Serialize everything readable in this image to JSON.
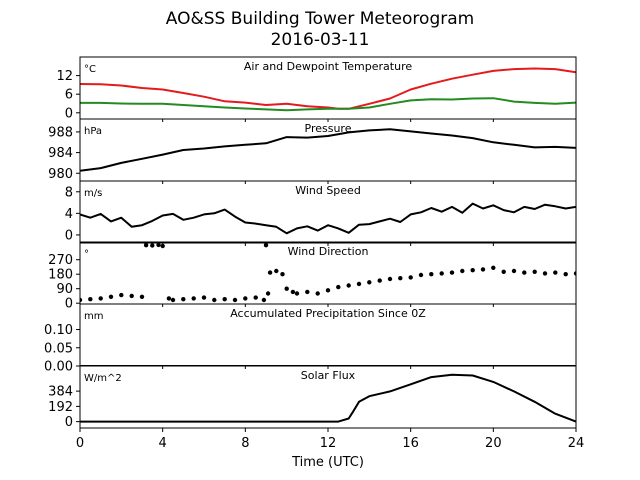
{
  "figure": {
    "title_line1": "AO&SS Building Tower Meteorogram",
    "title_line2": "2016-03-11",
    "xlabel": "Time (UTC)"
  },
  "chart_data": [
    {
      "type": "line",
      "title": "Air and Dewpoint Temperature",
      "unit_label": "°C",
      "xlim": [
        0,
        24
      ],
      "ylim": [
        -2,
        18
      ],
      "yticks": [
        "0",
        "6",
        "12"
      ],
      "colors": [
        "#e41a1c",
        "#228b22"
      ],
      "series": [
        {
          "x": [
            0,
            1,
            2,
            3,
            4,
            5,
            6,
            7,
            8,
            9,
            10,
            11,
            12,
            12.5,
            13,
            14,
            15,
            16,
            17,
            18,
            19,
            20,
            21,
            22,
            23,
            24
          ],
          "values": [
            9.3,
            9.2,
            8.8,
            8,
            7.5,
            6.4,
            5.2,
            3.7,
            3.3,
            2.5,
            2.9,
            2.1,
            1.7,
            1.3,
            1.3,
            2.9,
            4.6,
            7.5,
            9.4,
            11,
            12.3,
            13.5,
            14.1,
            14.3,
            14.1,
            13.1
          ]
        },
        {
          "x": [
            0,
            1,
            2,
            3,
            4,
            5,
            6,
            7,
            8,
            9,
            10,
            11,
            12,
            13,
            14,
            15,
            16,
            17,
            18,
            19,
            20,
            21,
            22,
            23,
            24
          ],
          "values": [
            3.2,
            3.2,
            3,
            2.9,
            2.9,
            2.5,
            2.1,
            1.7,
            1.4,
            1.1,
            0.8,
            1.1,
            1.3,
            1.3,
            1.7,
            2.9,
            4,
            4.4,
            4.3,
            4.6,
            4.7,
            3.6,
            3.2,
            2.9,
            3.3
          ]
        }
      ]
    },
    {
      "type": "line",
      "title": "Pressure",
      "unit_label": "hPa",
      "xlim": [
        0,
        24
      ],
      "ylim": [
        978.5,
        990.5
      ],
      "yticks": [
        "980",
        "984",
        "988"
      ],
      "colors": [
        "#000000"
      ],
      "series": [
        {
          "x": [
            0,
            1,
            2,
            3,
            4,
            5,
            6,
            7,
            8,
            9,
            10,
            11,
            12,
            13,
            14,
            15,
            16,
            17,
            18,
            19,
            20,
            21,
            22,
            23,
            24
          ],
          "values": [
            980.5,
            981,
            982,
            982.8,
            983.6,
            984.5,
            984.8,
            985.2,
            985.5,
            985.8,
            987,
            986.9,
            987.2,
            987.9,
            988.3,
            988.5,
            988.1,
            987.7,
            987.3,
            986.8,
            986,
            985.5,
            985,
            985.1,
            984.9
          ]
        }
      ]
    },
    {
      "type": "line",
      "title": "Wind Speed",
      "unit_label": "m/s",
      "xlim": [
        0,
        24
      ],
      "ylim": [
        -1.5,
        10
      ],
      "yticks": [
        "0",
        "4",
        "8"
      ],
      "colors": [
        "#000000"
      ],
      "series": [
        {
          "x": [
            0,
            0.5,
            1,
            1.5,
            2,
            2.5,
            3,
            3.5,
            4,
            4.5,
            5,
            5.5,
            6,
            6.5,
            7,
            7.5,
            8,
            8.5,
            9,
            9.5,
            10,
            10.5,
            11,
            11.5,
            12,
            12.5,
            13,
            13.5,
            14,
            14.5,
            15,
            15.5,
            16,
            16.5,
            17,
            17.5,
            18,
            18.5,
            19,
            19.5,
            20,
            20.5,
            21,
            21.5,
            22,
            22.5,
            23,
            23.5,
            24
          ],
          "values": [
            3.8,
            3.2,
            3.9,
            2.5,
            3.2,
            1.5,
            1.8,
            2.6,
            3.6,
            3.9,
            2.8,
            3.2,
            3.8,
            4,
            4.7,
            3.4,
            2.3,
            2.1,
            1.8,
            1.5,
            0.3,
            1.2,
            1.6,
            0.8,
            1.8,
            1.2,
            0.4,
            1.9,
            2,
            2.5,
            3,
            2.4,
            3.8,
            4.2,
            5,
            4.3,
            5.2,
            4.1,
            5.8,
            4.9,
            5.5,
            4.6,
            4.2,
            5.2,
            4.8,
            5.6,
            5.3,
            4.9,
            5.2
          ]
        }
      ]
    },
    {
      "type": "scatter",
      "title": "Wind Direction",
      "unit_label": "°",
      "xlim": [
        0,
        24
      ],
      "ylim": [
        -5,
        380
      ],
      "yticks": [
        "0",
        "90",
        "180",
        "270"
      ],
      "colors": [
        "#000000"
      ],
      "series": [
        {
          "x": [
            0,
            0.5,
            1,
            1.5,
            2,
            2.5,
            3,
            3.2,
            3.5,
            3.8,
            4,
            4.3,
            4.5,
            5,
            5.5,
            6,
            6.5,
            7,
            7.5,
            8,
            8.5,
            8.9,
            9,
            9.1,
            9.2,
            9.5,
            9.8,
            10,
            10.3,
            10.5,
            11,
            11.5,
            12,
            12.5,
            13,
            13.5,
            14,
            14.5,
            15,
            15.5,
            16,
            16.5,
            17,
            17.5,
            18,
            18.5,
            19,
            19.5,
            20,
            20.5,
            21,
            21.5,
            22,
            22.5,
            23,
            23.5,
            24
          ],
          "values": [
            20,
            25,
            30,
            40,
            50,
            45,
            40,
            360,
            358,
            362,
            355,
            30,
            20,
            25,
            30,
            35,
            20,
            25,
            20,
            30,
            35,
            20,
            360,
            60,
            190,
            200,
            180,
            90,
            70,
            60,
            70,
            60,
            80,
            100,
            110,
            120,
            130,
            140,
            150,
            155,
            160,
            175,
            180,
            185,
            190,
            200,
            205,
            210,
            220,
            195,
            200,
            190,
            195,
            185,
            190,
            180,
            185
          ]
        }
      ]
    },
    {
      "type": "line",
      "title": "Accumulated Precipitation Since 0Z",
      "unit_label": "mm",
      "xlim": [
        0,
        24
      ],
      "ylim": [
        0,
        0.17
      ],
      "yticks": [
        "0.00",
        "0.05",
        "0.10"
      ],
      "colors": [
        "#000000"
      ],
      "series": [
        {
          "x": [
            0,
            24
          ],
          "values": [
            0,
            0
          ]
        }
      ]
    },
    {
      "type": "line",
      "title": "Solar Flux",
      "unit_label": "W/m^2",
      "xlim": [
        0,
        24
      ],
      "ylim": [
        -80,
        700
      ],
      "yticks": [
        "0",
        "192",
        "384"
      ],
      "colors": [
        "#000000"
      ],
      "series": [
        {
          "x": [
            0,
            12.5,
            13,
            13.2,
            13.5,
            14,
            15,
            16,
            17,
            18,
            19,
            20,
            21,
            22,
            23,
            24
          ],
          "values": [
            0,
            0,
            40,
            120,
            250,
            320,
            380,
            470,
            560,
            590,
            580,
            500,
            380,
            250,
            100,
            0
          ]
        }
      ]
    }
  ]
}
